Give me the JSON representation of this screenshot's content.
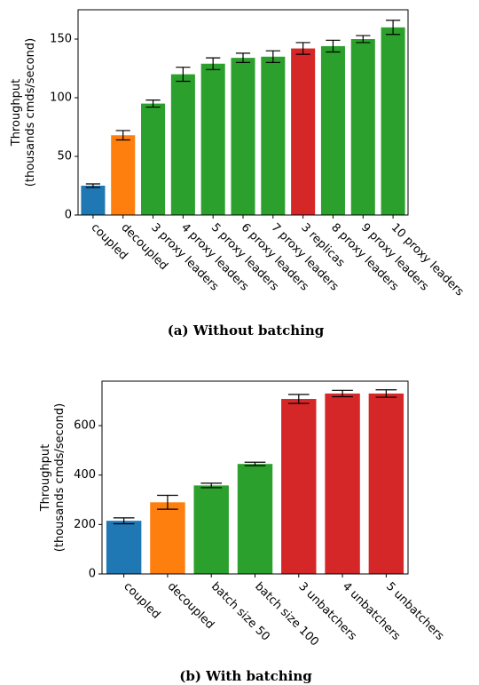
{
  "colors": {
    "blue": "#1f77b4",
    "orange": "#ff7f0e",
    "green": "#2ca02c",
    "red": "#d62728"
  },
  "captions": {
    "a": "(a) Without batching",
    "b": "(b) With batching"
  },
  "chart_data": [
    {
      "type": "bar",
      "ylabel_line1": "Throughput",
      "ylabel_line2": "(thousands cmds/second)",
      "ylim": [
        0,
        175
      ],
      "yticks": [
        0,
        50,
        100,
        150
      ],
      "grid": false,
      "categories": [
        "coupled",
        "decoupled",
        "3 proxy leaders",
        "4 proxy leaders",
        "5 proxy leaders",
        "6 proxy leaders",
        "7 proxy leaders",
        "3 replicas",
        "8 proxy leaders",
        "9 proxy leaders",
        "10 proxy leaders"
      ],
      "values": [
        25,
        68,
        95,
        120,
        129,
        134,
        135,
        142,
        144,
        150,
        160
      ],
      "errors": [
        1.5,
        4,
        3,
        6,
        5,
        4,
        5,
        5,
        5,
        3,
        6
      ],
      "bar_colors": [
        "blue",
        "orange",
        "green",
        "green",
        "green",
        "green",
        "green",
        "red",
        "green",
        "green",
        "green"
      ]
    },
    {
      "type": "bar",
      "ylabel_line1": "Throughput",
      "ylabel_line2": "(thousands cmds/second)",
      "ylim": [
        0,
        780
      ],
      "yticks": [
        0,
        200,
        400,
        600
      ],
      "grid": false,
      "categories": [
        "coupled",
        "decoupled",
        "batch size 50",
        "batch size 100",
        "3 unbatchers",
        "4 unbatchers",
        "5 unbatchers"
      ],
      "values": [
        215,
        290,
        358,
        445,
        708,
        730,
        730
      ],
      "errors": [
        12,
        28,
        9,
        7,
        18,
        13,
        15
      ],
      "bar_colors": [
        "blue",
        "orange",
        "green",
        "green",
        "red",
        "red",
        "red"
      ]
    }
  ]
}
